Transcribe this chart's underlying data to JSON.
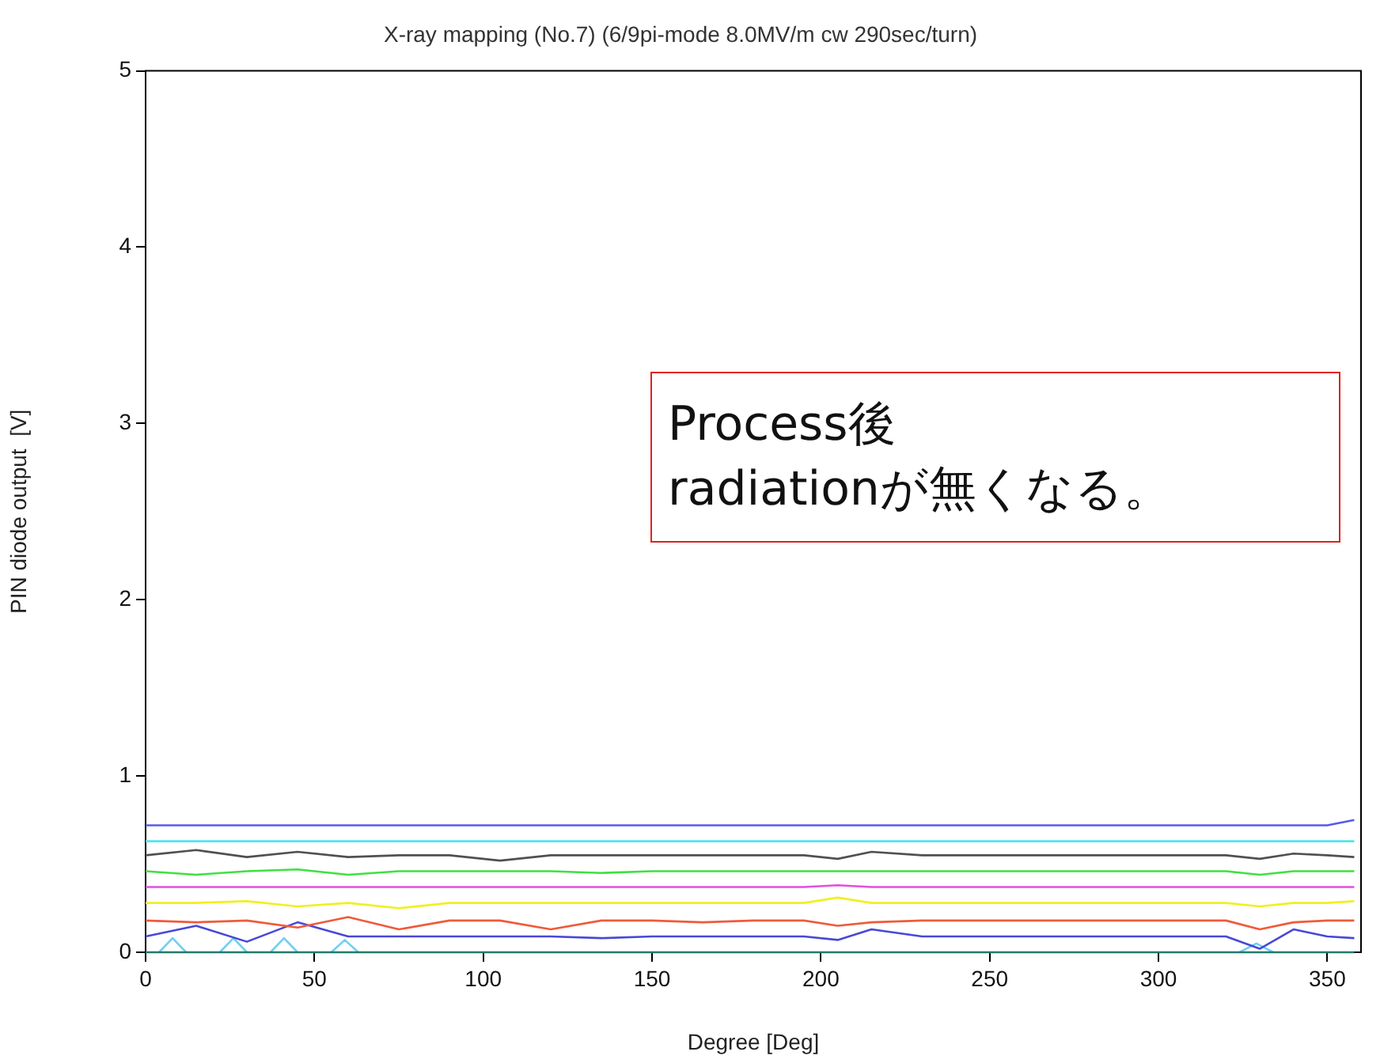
{
  "chart_data": {
    "type": "line",
    "title": "X-ray mapping (No.7) (6/9pi-mode 8.0MV/m cw 290sec/turn)",
    "xlabel": "Degree [Deg]",
    "ylabel": "PIN diode output  [V]",
    "x": [
      0,
      15,
      30,
      45,
      60,
      75,
      90,
      105,
      120,
      135,
      150,
      165,
      180,
      195,
      205,
      215,
      230,
      245,
      260,
      275,
      290,
      305,
      320,
      330,
      340,
      350,
      358
    ],
    "series": [
      {
        "color": "#5a5ae6",
        "values": [
          0.72,
          0.72,
          0.72,
          0.72,
          0.72,
          0.72,
          0.72,
          0.72,
          0.72,
          0.72,
          0.72,
          0.72,
          0.72,
          0.72,
          0.72,
          0.72,
          0.72,
          0.72,
          0.72,
          0.72,
          0.72,
          0.72,
          0.72,
          0.72,
          0.72,
          0.72,
          0.75
        ]
      },
      {
        "color": "#50e6f0",
        "values": [
          0.63,
          0.63,
          0.63,
          0.63,
          0.63,
          0.63,
          0.63,
          0.63,
          0.63,
          0.63,
          0.63,
          0.63,
          0.63,
          0.63,
          0.63,
          0.63,
          0.63,
          0.63,
          0.63,
          0.63,
          0.63,
          0.63,
          0.63,
          0.63,
          0.63,
          0.63,
          0.63
        ]
      },
      {
        "color": "#505050",
        "values": [
          0.55,
          0.58,
          0.54,
          0.57,
          0.54,
          0.55,
          0.55,
          0.52,
          0.55,
          0.55,
          0.55,
          0.55,
          0.55,
          0.55,
          0.53,
          0.57,
          0.55,
          0.55,
          0.55,
          0.55,
          0.55,
          0.55,
          0.55,
          0.53,
          0.56,
          0.55,
          0.54
        ]
      },
      {
        "color": "#40e040",
        "values": [
          0.46,
          0.44,
          0.46,
          0.47,
          0.44,
          0.46,
          0.46,
          0.46,
          0.46,
          0.45,
          0.46,
          0.46,
          0.46,
          0.46,
          0.46,
          0.46,
          0.46,
          0.46,
          0.46,
          0.46,
          0.46,
          0.46,
          0.46,
          0.44,
          0.46,
          0.46,
          0.46
        ]
      },
      {
        "color": "#e050e0",
        "values": [
          0.37,
          0.37,
          0.37,
          0.37,
          0.37,
          0.37,
          0.37,
          0.37,
          0.37,
          0.37,
          0.37,
          0.37,
          0.37,
          0.37,
          0.38,
          0.37,
          0.37,
          0.37,
          0.37,
          0.37,
          0.37,
          0.37,
          0.37,
          0.37,
          0.37,
          0.37,
          0.37
        ]
      },
      {
        "color": "#f0f020",
        "values": [
          0.28,
          0.28,
          0.29,
          0.26,
          0.28,
          0.25,
          0.28,
          0.28,
          0.28,
          0.28,
          0.28,
          0.28,
          0.28,
          0.28,
          0.31,
          0.28,
          0.28,
          0.28,
          0.28,
          0.28,
          0.28,
          0.28,
          0.28,
          0.26,
          0.28,
          0.28,
          0.29
        ]
      },
      {
        "color": "#f05a3a",
        "values": [
          0.18,
          0.17,
          0.18,
          0.14,
          0.2,
          0.13,
          0.18,
          0.18,
          0.13,
          0.18,
          0.18,
          0.17,
          0.18,
          0.18,
          0.15,
          0.17,
          0.18,
          0.18,
          0.18,
          0.18,
          0.18,
          0.18,
          0.18,
          0.13,
          0.17,
          0.18,
          0.18
        ]
      },
      {
        "color": "#4848d8",
        "values": [
          0.09,
          0.15,
          0.06,
          0.17,
          0.09,
          0.09,
          0.09,
          0.09,
          0.09,
          0.08,
          0.09,
          0.09,
          0.09,
          0.09,
          0.07,
          0.13,
          0.09,
          0.09,
          0.09,
          0.09,
          0.09,
          0.09,
          0.09,
          0.02,
          0.13,
          0.09,
          0.08
        ]
      },
      {
        "color": "#207a6a",
        "values": [
          0.0,
          0.0,
          0.0,
          0.0,
          0.0,
          0.0,
          0.0,
          0.0,
          0.0,
          0.0,
          0.0,
          0.0,
          0.0,
          0.0,
          0.0,
          0.0,
          0.0,
          0.0,
          0.0,
          0.0,
          0.0,
          0.0,
          0.0,
          0.0,
          0.0,
          0.0,
          0.0
        ]
      },
      {
        "color": "#70d0f0",
        "x": [
          4,
          8,
          12,
          null,
          22,
          26,
          30,
          null,
          37,
          41,
          45,
          null,
          55,
          59,
          63,
          null,
          324,
          329,
          334
        ],
        "values": [
          0,
          0.08,
          0,
          null,
          0,
          0.08,
          0,
          null,
          0,
          0.08,
          0,
          null,
          0,
          0.07,
          0,
          null,
          0,
          0.05,
          0
        ]
      }
    ],
    "xlim": [
      0,
      360
    ],
    "xticks": [
      0,
      50,
      100,
      150,
      200,
      250,
      300,
      350
    ],
    "ylim": [
      0,
      5
    ],
    "yticks": [
      0,
      1,
      2,
      3,
      4,
      5
    ],
    "annotations": [
      "Process後\nradiationが無くなる。"
    ]
  }
}
